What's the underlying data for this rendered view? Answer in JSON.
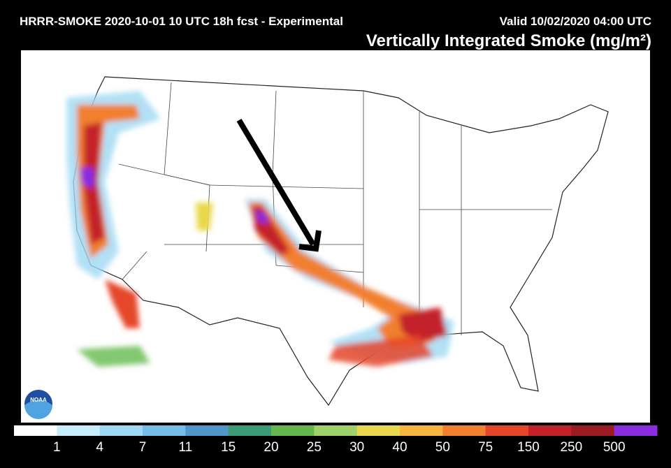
{
  "header": {
    "title": "HRRR-SMOKE 2020-10-01 10 UTC 18h fcst - Experimental",
    "valid": "Valid 10/02/2020 04:00 UTC",
    "field": "Vertically Integrated Smoke (mg/m²)"
  },
  "logo": {
    "label": "NOAA"
  },
  "colorbar": {
    "ticks": [
      1,
      4,
      7,
      11,
      15,
      20,
      25,
      30,
      40,
      50,
      75,
      150,
      250,
      500
    ],
    "colors": [
      "#ffffff",
      "#c8ecfa",
      "#9fd8f3",
      "#74bde8",
      "#4f97c8",
      "#3c9c78",
      "#64b94e",
      "#9fd36a",
      "#e8d84c",
      "#f6b53e",
      "#f17f2f",
      "#e5462a",
      "#c4202a",
      "#9c1a24",
      "#8a2ce0"
    ]
  }
}
